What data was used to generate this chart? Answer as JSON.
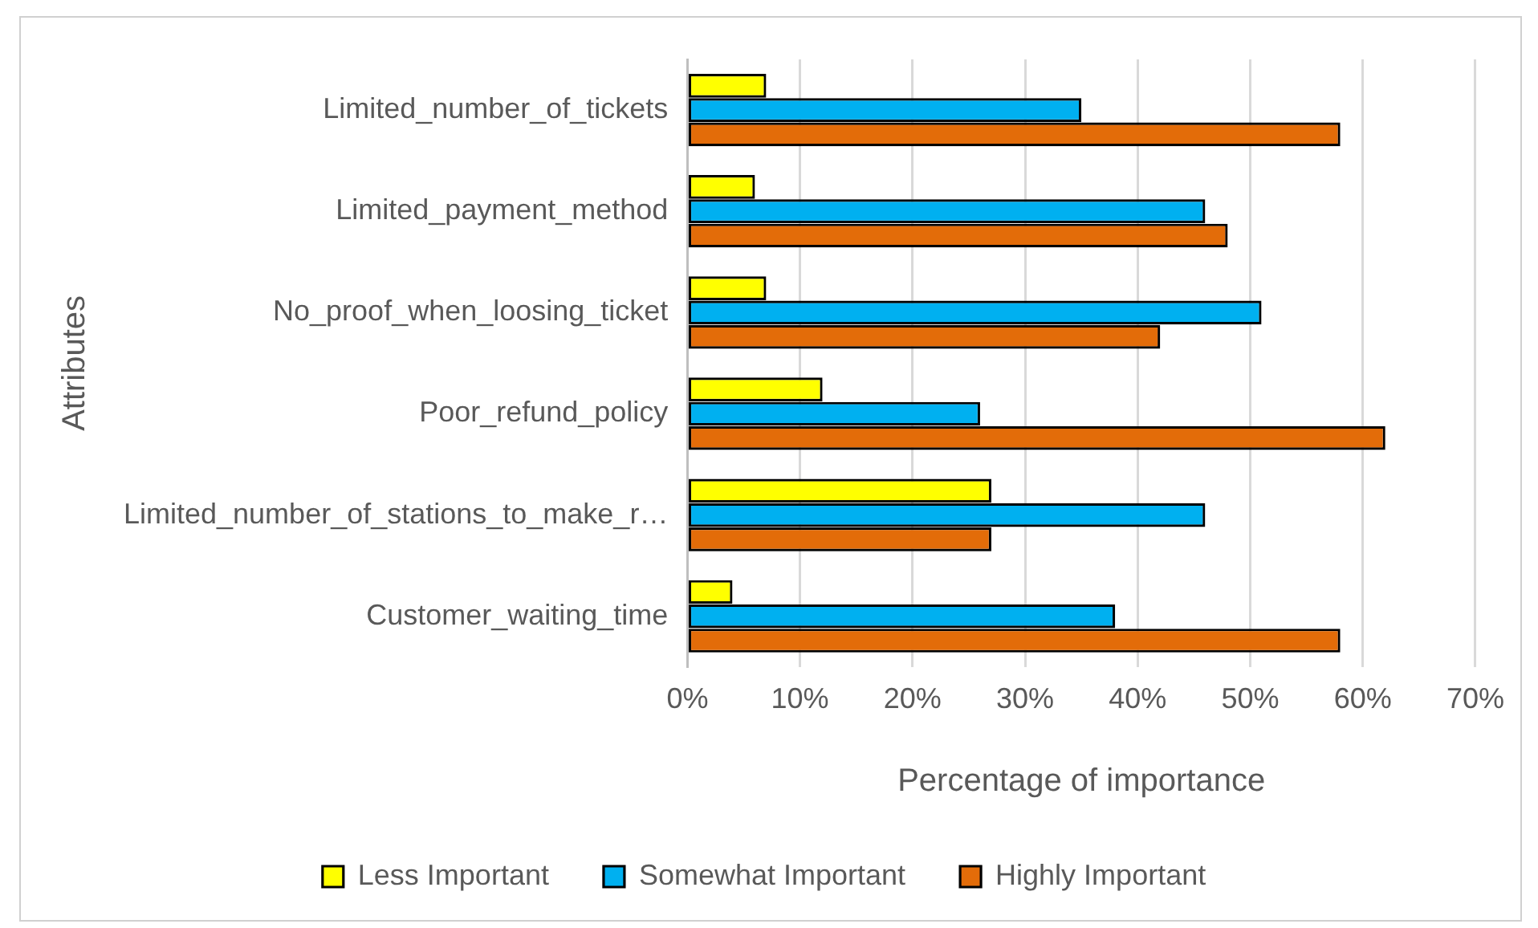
{
  "chart_data": {
    "type": "bar",
    "orientation": "horizontal",
    "xlabel": "Percentage of importance",
    "ylabel": "Attributes",
    "categories": [
      "Limited_number_of_tickets",
      "Limited_payment_method",
      "No_proof_when_loosing_ticket",
      "Poor_refund_policy",
      "Limited_number_of_stations_to_make_r…",
      "Customer_waiting_time"
    ],
    "series": [
      {
        "name": "Less Important",
        "color": "#ffff00",
        "values": [
          7,
          6,
          7,
          12,
          27,
          4
        ]
      },
      {
        "name": "Somewhat Important",
        "color": "#00b0f0",
        "values": [
          35,
          46,
          51,
          26,
          46,
          38
        ]
      },
      {
        "name": "Highly Important",
        "color": "#e36c09",
        "values": [
          58,
          48,
          42,
          62,
          27,
          58
        ]
      }
    ],
    "xlim": [
      0,
      70
    ],
    "xticks": [
      {
        "value": 0,
        "label": "0%"
      },
      {
        "value": 10,
        "label": "10%"
      },
      {
        "value": 20,
        "label": "20%"
      },
      {
        "value": 30,
        "label": "30%"
      },
      {
        "value": 40,
        "label": "40%"
      },
      {
        "value": 50,
        "label": "50%"
      },
      {
        "value": 60,
        "label": "60%"
      },
      {
        "value": 70,
        "label": "70%"
      }
    ],
    "grid": "x",
    "legend": "bottom"
  }
}
